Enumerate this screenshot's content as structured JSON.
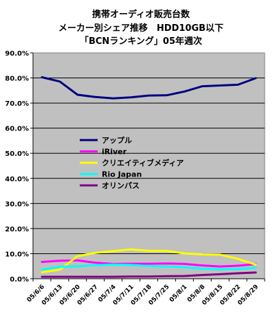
{
  "chart_data": {
    "type": "line",
    "title_lines": [
      "携帯オーディオ販売台数",
      "メーカー別シェア推移　HDD10GB以下",
      "「BCNランキング」05年週次"
    ],
    "x": [
      "05/6/6",
      "05/6/13",
      "05/6/20",
      "05/6/27",
      "05/7/4",
      "05/7/11",
      "05/7/18",
      "05/7/25",
      "05/8/1",
      "05/8/8",
      "05/8/15",
      "05/8/22",
      "05/8/29"
    ],
    "ylim": [
      0,
      90
    ],
    "yticks": [
      "0.0%",
      "10.0%",
      "20.0%",
      "30.0%",
      "40.0%",
      "50.0%",
      "60.0%",
      "70.0%",
      "80.0%",
      "90.0%"
    ],
    "grid": true,
    "plot_background": "#c0c0c0",
    "legend_position": "center-left",
    "series": [
      {
        "name": "アップル",
        "color": "#000080",
        "values": [
          80.3,
          78.6,
          73.3,
          72.4,
          71.9,
          72.3,
          73.0,
          73.1,
          74.6,
          76.7,
          77.0,
          77.3,
          79.9
        ]
      },
      {
        "name": "iRiver",
        "color": "#ff00ff",
        "values": [
          6.7,
          7.2,
          7.3,
          6.4,
          5.9,
          6.0,
          6.0,
          6.1,
          5.9,
          5.3,
          4.9,
          5.2,
          5.8
        ]
      },
      {
        "name": "クリエイティブメディア",
        "color": "#ffff00",
        "values": [
          2.6,
          3.6,
          9.0,
          10.3,
          11.0,
          11.7,
          11.1,
          11.1,
          10.1,
          9.7,
          9.6,
          7.9,
          5.6
        ]
      },
      {
        "name": "Rio Japan",
        "color": "#00ffff",
        "values": [
          3.6,
          4.8,
          5.0,
          5.4,
          5.7,
          5.5,
          5.1,
          4.9,
          4.6,
          4.0,
          3.8,
          3.9,
          4.4
        ]
      },
      {
        "name": "オリンパス",
        "color": "#800080",
        "values": [
          0.8,
          0.8,
          0.8,
          0.8,
          0.8,
          0.9,
          0.9,
          1.0,
          1.1,
          1.5,
          1.8,
          2.2,
          2.5
        ]
      }
    ]
  }
}
